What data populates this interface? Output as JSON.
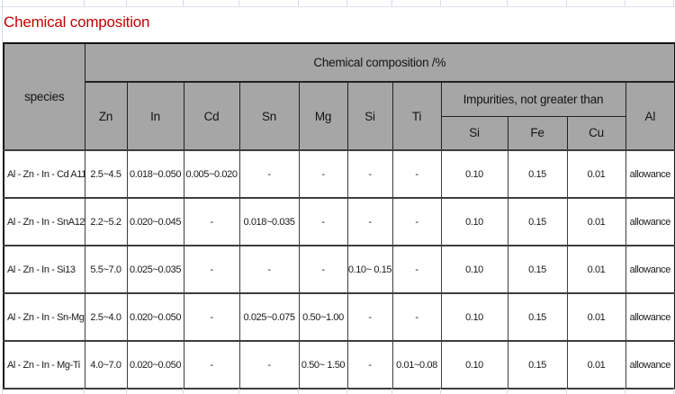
{
  "title": "Chemical composition",
  "colors": {
    "title_red": "#c80000",
    "header_gray": "#a6a6a6",
    "border_dark": "#3d3d3d",
    "faint_gridline": "#d6dbe8"
  },
  "table": {
    "species_header": "species",
    "top_header": "Chemical composition /%",
    "element_headers": [
      "Zn",
      "In",
      "Cd",
      "Sn",
      "Mg",
      "Si",
      "Ti"
    ],
    "impurities_header": "Impurities, not greater than",
    "impurity_headers": [
      "Si",
      "Fe",
      "Cu"
    ],
    "al_header": "Al",
    "rows": [
      [
        "Al - Zn - In - Cd A11",
        "2.5~4.5",
        "0.018~0.050",
        "0.005~0.020",
        "-",
        "-",
        "-",
        "-",
        "0.10",
        "0.15",
        "0.01",
        "allowance"
      ],
      [
        "Al - Zn - In - SnA12",
        "2.2~5.2",
        "0.020~0.045",
        "-",
        "0.018~0.035",
        "-",
        "-",
        "-",
        "0.10",
        "0.15",
        "0.01",
        "allowance"
      ],
      [
        "Al - Zn - In - Si13",
        "5.5~7.0",
        "0.025~0.035",
        "-",
        "-",
        "-",
        "0.10~ 0.15",
        "-",
        "0.10",
        "0.15",
        "0.01",
        "allowance"
      ],
      [
        "Al - Zn - In - Sn-Mg",
        "2.5~4.0",
        "0.020~0.050",
        "-",
        "0.025~0.075",
        "0.50~1.00",
        "-",
        "-",
        "0.10",
        "0.15",
        "0.01",
        "allowance"
      ],
      [
        "Al - Zn - In - Mg-Ti",
        "4.0~7.0",
        "0.020~0.050",
        "-",
        "-",
        "0.50~ 1.50",
        "-",
        "0.01~0.08",
        "0.10",
        "0.15",
        "0.01",
        "allowance"
      ]
    ]
  }
}
